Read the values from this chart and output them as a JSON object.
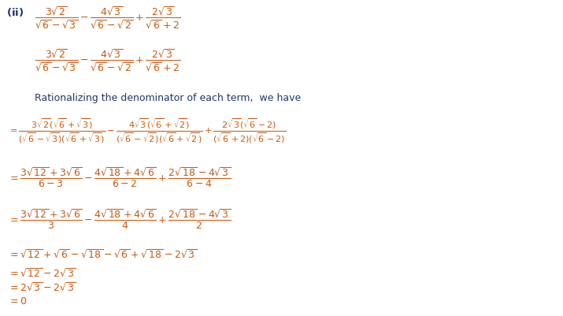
{
  "background_color": "#ffffff",
  "text_color_dark": "#1f3864",
  "text_color_orange": "#c45911",
  "fig_width": 7.15,
  "fig_height": 4.02,
  "dpi": 100,
  "fs_header": 9.5,
  "fs_math": 9.0,
  "fs_text": 9.0,
  "fs_small": 8.0
}
